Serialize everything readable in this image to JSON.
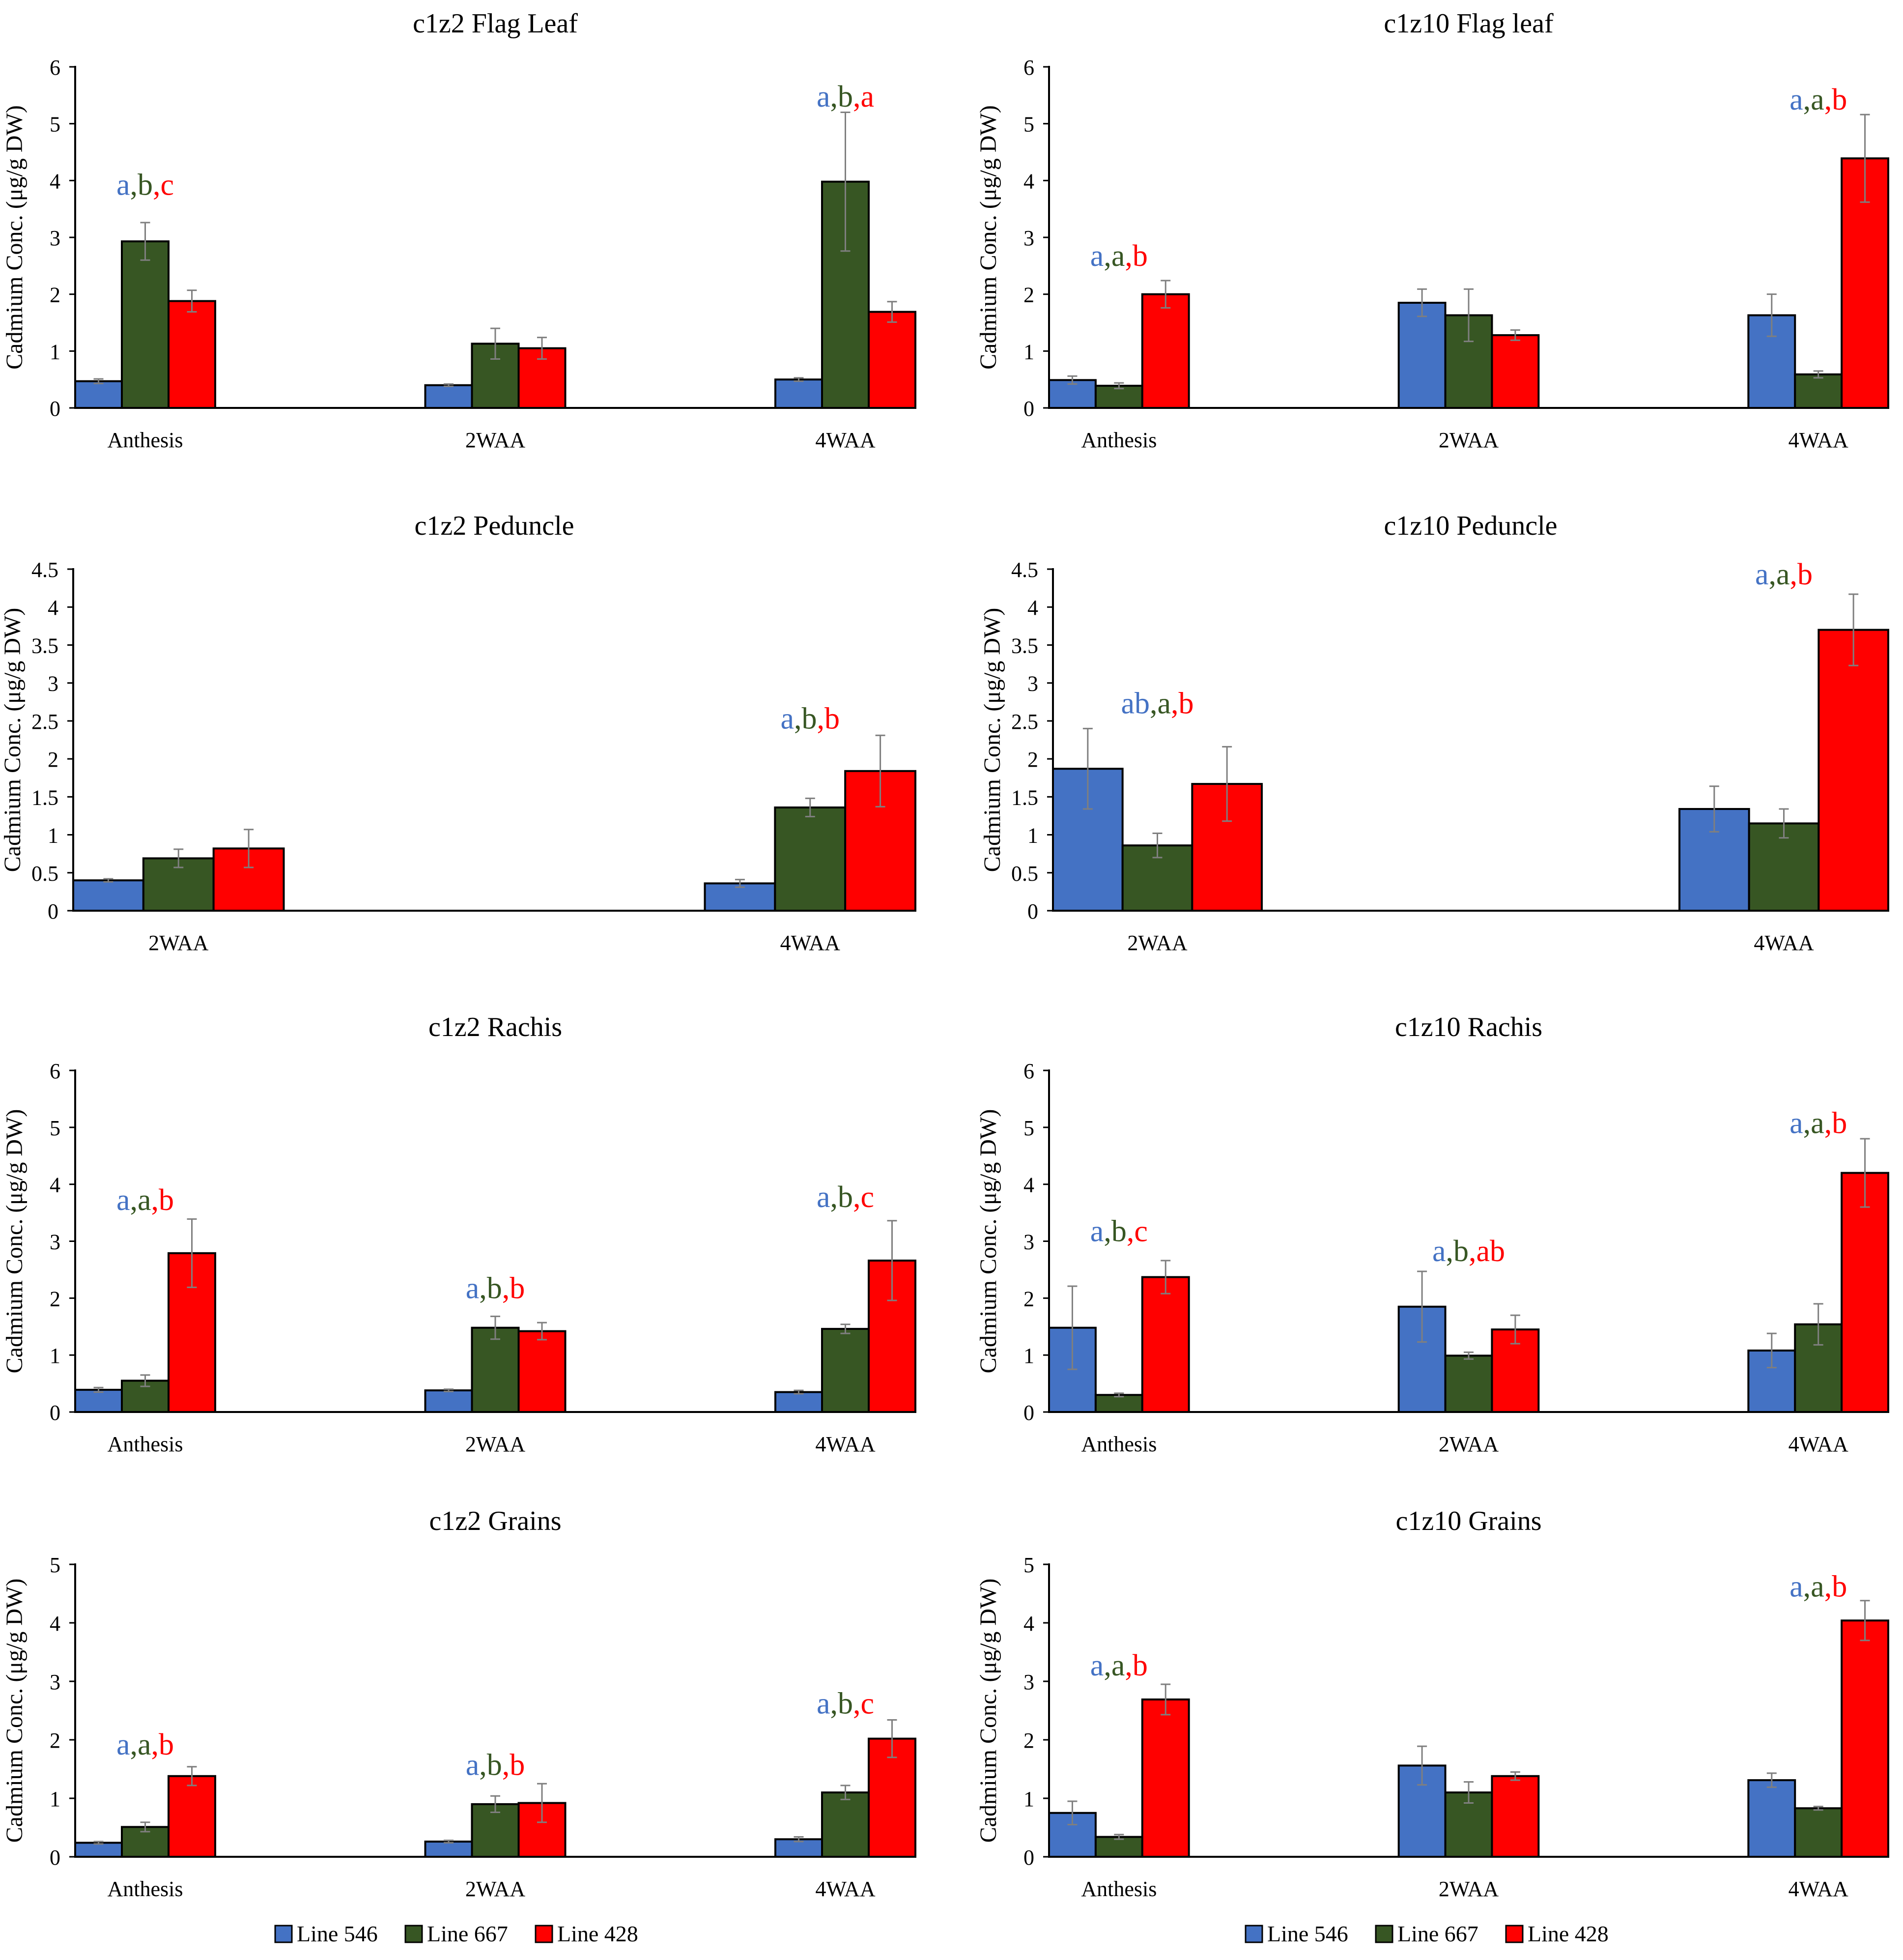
{
  "colors": {
    "line546": "#4472C4",
    "line667": "#375623",
    "line428": "#FF0000",
    "axis": "#000000",
    "error": "#7F7F7F"
  },
  "legend": [
    {
      "label": "Line 546",
      "color": "#4472C4"
    },
    {
      "label": "Line 667",
      "color": "#375623"
    },
    {
      "label": "Line 428",
      "color": "#FF0000"
    }
  ],
  "chart_data": [
    {
      "type": "bar",
      "title": "c1z2 Flag Leaf",
      "ylabel": "Cadmium Conc. (μg/g DW)",
      "categories": [
        "Anthesis",
        "2WAA",
        "4WAA"
      ],
      "ylim": [
        0,
        6
      ],
      "yticks": [
        "0",
        "1",
        "2",
        "3",
        "4",
        "5",
        "6"
      ],
      "tick_values": [
        0,
        1,
        2,
        3,
        4,
        5,
        6
      ],
      "series": [
        {
          "name": "Line 546",
          "values": [
            0.47,
            0.4,
            0.5
          ],
          "errors": [
            0.04,
            0.02,
            0.03
          ]
        },
        {
          "name": "Line 667",
          "values": [
            2.93,
            1.13,
            3.98
          ],
          "errors": [
            0.33,
            0.27,
            1.22
          ]
        },
        {
          "name": "Line 428",
          "values": [
            1.88,
            1.05,
            1.69
          ],
          "errors": [
            0.19,
            0.19,
            0.18
          ]
        }
      ],
      "annotations": [
        {
          "category": "Anthesis",
          "letters": [
            "a",
            "b",
            "c"
          ],
          "y": 3.75
        },
        {
          "category": "4WAA",
          "letters": [
            "a",
            "b",
            "a"
          ],
          "y": 5.3
        }
      ]
    },
    {
      "type": "bar",
      "title": "c1z10 Flag leaf",
      "ylabel": "Cadmium Conc. (μg/g DW)",
      "categories": [
        "Anthesis",
        "2WAA",
        "4WAA"
      ],
      "ylim": [
        0,
        6
      ],
      "yticks": [
        "0",
        "1",
        "2",
        "3",
        "4",
        "5",
        "6"
      ],
      "tick_values": [
        0,
        1,
        2,
        3,
        4,
        5,
        6
      ],
      "series": [
        {
          "name": "Line 546",
          "values": [
            0.49,
            1.85,
            1.63
          ],
          "errors": [
            0.07,
            0.24,
            0.37
          ]
        },
        {
          "name": "Line 667",
          "values": [
            0.39,
            1.63,
            0.59
          ],
          "errors": [
            0.05,
            0.46,
            0.06
          ]
        },
        {
          "name": "Line 428",
          "values": [
            2.0,
            1.28,
            4.39
          ],
          "errors": [
            0.24,
            0.09,
            0.77
          ]
        }
      ],
      "annotations": [
        {
          "category": "Anthesis",
          "letters": [
            "a",
            "a",
            "b"
          ],
          "y": 2.5
        },
        {
          "category": "4WAA",
          "letters": [
            "a",
            "a",
            "b"
          ],
          "y": 5.25
        }
      ]
    },
    {
      "type": "bar",
      "title": "c1z2 Peduncle",
      "ylabel": "Cadmium Conc. (μg/g DW)",
      "categories": [
        "2WAA",
        "4WAA"
      ],
      "ylim": [
        0,
        4.5
      ],
      "yticks": [
        "0",
        "0.5",
        "1",
        "1.5",
        "2",
        "2.5",
        "3",
        "3.5",
        "4",
        "4.5"
      ],
      "tick_values": [
        0,
        0.5,
        1,
        1.5,
        2,
        2.5,
        3,
        3.5,
        4,
        4.5
      ],
      "series": [
        {
          "name": "Line 546",
          "values": [
            0.4,
            0.36
          ],
          "errors": [
            0.02,
            0.05
          ]
        },
        {
          "name": "Line 667",
          "values": [
            0.69,
            1.36
          ],
          "errors": [
            0.12,
            0.12
          ]
        },
        {
          "name": "Line 428",
          "values": [
            0.82,
            1.84
          ],
          "errors": [
            0.25,
            0.47
          ]
        }
      ],
      "annotations": [
        {
          "category": "4WAA",
          "letters": [
            "a",
            "b",
            "b"
          ],
          "y": 2.4
        }
      ]
    },
    {
      "type": "bar",
      "title": "c1z10 Peduncle",
      "ylabel": "Cadmium Conc. (μg/g DW)",
      "categories": [
        "2WAA",
        "4WAA"
      ],
      "ylim": [
        0,
        4.5
      ],
      "yticks": [
        "0",
        "0.5",
        "1",
        "1.5",
        "2",
        "2.5",
        "3",
        "3.5",
        "4",
        "4.5"
      ],
      "tick_values": [
        0,
        0.5,
        1,
        1.5,
        2,
        2.5,
        3,
        3.5,
        4,
        4.5
      ],
      "series": [
        {
          "name": "Line 546",
          "values": [
            1.87,
            1.34
          ],
          "errors": [
            0.53,
            0.3
          ]
        },
        {
          "name": "Line 667",
          "values": [
            0.86,
            1.15
          ],
          "errors": [
            0.16,
            0.19
          ]
        },
        {
          "name": "Line 428",
          "values": [
            1.67,
            3.7
          ],
          "errors": [
            0.49,
            0.47
          ]
        }
      ],
      "annotations": [
        {
          "category": "2WAA",
          "letters": [
            "ab",
            "a",
            "b"
          ],
          "y": 2.6
        },
        {
          "category": "4WAA",
          "letters": [
            "a",
            "a",
            "b"
          ],
          "y": 4.3
        }
      ]
    },
    {
      "type": "bar",
      "title": "c1z2 Rachis",
      "ylabel": "Cadmium Conc. (μg/g DW)",
      "categories": [
        "Anthesis",
        "2WAA",
        "4WAA"
      ],
      "ylim": [
        0,
        6
      ],
      "yticks": [
        "0",
        "1",
        "2",
        "3",
        "4",
        "5",
        "6"
      ],
      "tick_values": [
        0,
        1,
        2,
        3,
        4,
        5,
        6
      ],
      "series": [
        {
          "name": "Line 546",
          "values": [
            0.39,
            0.38,
            0.35
          ],
          "errors": [
            0.04,
            0.02,
            0.03
          ]
        },
        {
          "name": "Line 667",
          "values": [
            0.55,
            1.48,
            1.46
          ],
          "errors": [
            0.1,
            0.2,
            0.08
          ]
        },
        {
          "name": "Line 428",
          "values": [
            2.79,
            1.42,
            2.66
          ],
          "errors": [
            0.6,
            0.15,
            0.7
          ]
        }
      ],
      "annotations": [
        {
          "category": "Anthesis",
          "letters": [
            "a",
            "a",
            "b"
          ],
          "y": 3.55
        },
        {
          "category": "2WAA",
          "letters": [
            "a",
            "b",
            "b"
          ],
          "y": 2.0
        },
        {
          "category": "4WAA",
          "letters": [
            "a",
            "b",
            "c"
          ],
          "y": 3.6
        }
      ]
    },
    {
      "type": "bar",
      "title": "c1z10 Rachis",
      "ylabel": "Cadmium Conc. (μg/g DW)",
      "categories": [
        "Anthesis",
        "2WAA",
        "4WAA"
      ],
      "ylim": [
        0,
        6
      ],
      "yticks": [
        "0",
        "1",
        "2",
        "3",
        "4",
        "5",
        "6"
      ],
      "tick_values": [
        0,
        1,
        2,
        3,
        4,
        5,
        6
      ],
      "series": [
        {
          "name": "Line 546",
          "values": [
            1.48,
            1.85,
            1.08
          ],
          "errors": [
            0.73,
            0.62,
            0.3
          ]
        },
        {
          "name": "Line 667",
          "values": [
            0.3,
            0.99,
            1.54
          ],
          "errors": [
            0.03,
            0.06,
            0.36
          ]
        },
        {
          "name": "Line 428",
          "values": [
            2.37,
            1.45,
            4.2
          ],
          "errors": [
            0.29,
            0.25,
            0.6
          ]
        }
      ],
      "annotations": [
        {
          "category": "Anthesis",
          "letters": [
            "a",
            "b",
            "c"
          ],
          "y": 3.0
        },
        {
          "category": "2WAA",
          "letters": [
            "a",
            "b",
            "ab"
          ],
          "y": 2.65
        },
        {
          "category": "4WAA",
          "letters": [
            "a",
            "a",
            "b"
          ],
          "y": 4.9
        }
      ]
    },
    {
      "type": "bar",
      "title": "c1z2 Grains",
      "ylabel": "Cadmium Conc. (μg/g DW)",
      "categories": [
        "Anthesis",
        "2WAA",
        "4WAA"
      ],
      "ylim": [
        0,
        5
      ],
      "yticks": [
        "0",
        "1",
        "2",
        "3",
        "4",
        "5"
      ],
      "tick_values": [
        0,
        1,
        2,
        3,
        4,
        5
      ],
      "series": [
        {
          "name": "Line 546",
          "values": [
            0.24,
            0.26,
            0.3
          ],
          "errors": [
            0.02,
            0.02,
            0.04
          ]
        },
        {
          "name": "Line 667",
          "values": [
            0.51,
            0.9,
            1.1
          ],
          "errors": [
            0.08,
            0.14,
            0.12
          ]
        },
        {
          "name": "Line 428",
          "values": [
            1.38,
            0.92,
            2.02
          ],
          "errors": [
            0.16,
            0.33,
            0.32
          ]
        }
      ],
      "annotations": [
        {
          "category": "Anthesis",
          "letters": [
            "a",
            "a",
            "b"
          ],
          "y": 1.75
        },
        {
          "category": "2WAA",
          "letters": [
            "a",
            "b",
            "b"
          ],
          "y": 1.4
        },
        {
          "category": "4WAA",
          "letters": [
            "a",
            "b",
            "c"
          ],
          "y": 2.45
        }
      ]
    },
    {
      "type": "bar",
      "title": "c1z10 Grains",
      "ylabel": "Cadmium Conc. (μg/g DW)",
      "categories": [
        "Anthesis",
        "2WAA",
        "4WAA"
      ],
      "ylim": [
        0,
        5
      ],
      "yticks": [
        "0",
        "1",
        "2",
        "3",
        "4",
        "5"
      ],
      "tick_values": [
        0,
        1,
        2,
        3,
        4,
        5
      ],
      "series": [
        {
          "name": "Line 546",
          "values": [
            0.75,
            1.56,
            1.31
          ],
          "errors": [
            0.2,
            0.33,
            0.12
          ]
        },
        {
          "name": "Line 667",
          "values": [
            0.34,
            1.1,
            0.83
          ],
          "errors": [
            0.04,
            0.18,
            0.03
          ]
        },
        {
          "name": "Line 428",
          "values": [
            2.69,
            1.38,
            4.04
          ],
          "errors": [
            0.26,
            0.07,
            0.34
          ]
        }
      ],
      "annotations": [
        {
          "category": "Anthesis",
          "letters": [
            "a",
            "a",
            "b"
          ],
          "y": 3.1
        },
        {
          "category": "4WAA",
          "letters": [
            "a",
            "a",
            "b"
          ],
          "y": 4.45
        }
      ]
    }
  ]
}
